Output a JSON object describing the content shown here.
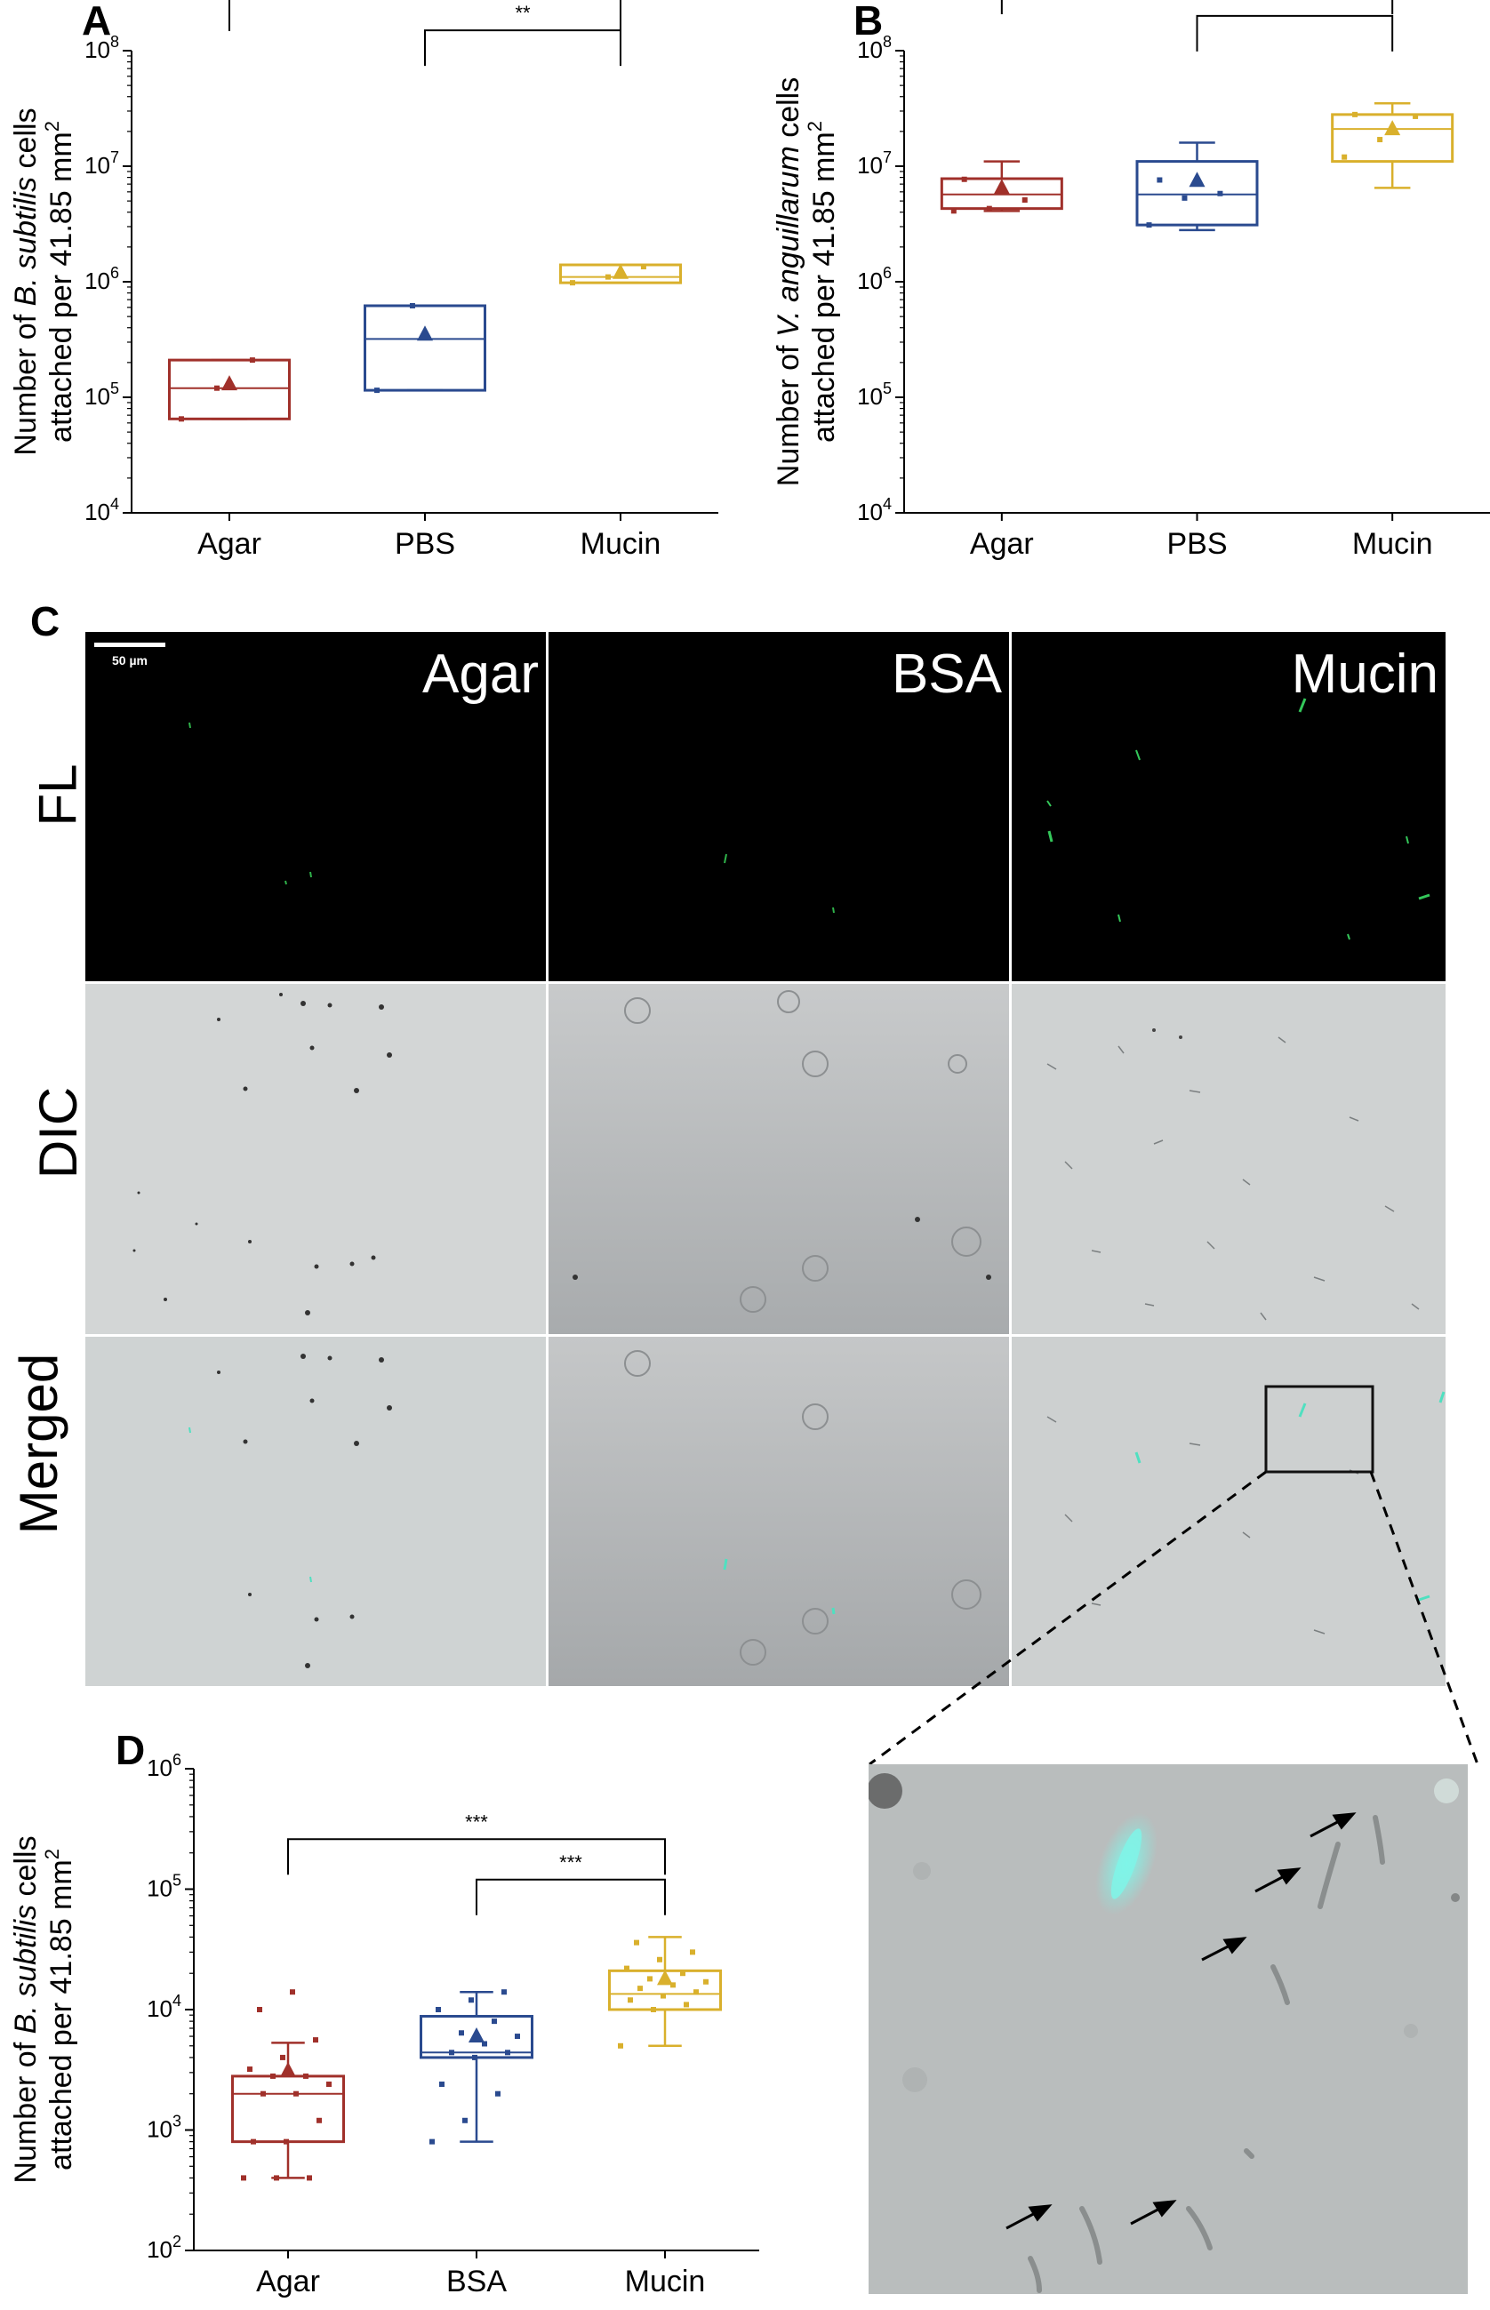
{
  "figure": {
    "panels": {
      "A": {
        "letter": "A"
      },
      "B": {
        "letter": "B"
      },
      "C": {
        "letter": "C"
      },
      "D": {
        "letter": "D"
      }
    },
    "micrograph": {
      "scale_bar": "50 µm",
      "conditions": [
        "Agar",
        "BSA",
        "Mucin"
      ],
      "rows": [
        "FL",
        "DIC",
        "Merged"
      ]
    }
  },
  "chart_data": [
    {
      "panel": "A",
      "type": "box",
      "yscale": "log",
      "ylim": [
        10000,
        100000000
      ],
      "yticks": [
        "10^4",
        "10^5",
        "10^6",
        "10^7",
        "10^8"
      ],
      "ylabel_line1_pre": "Number of ",
      "ylabel_line1_italic": "B. subtilis",
      "ylabel_line1_post": " cells",
      "ylabel_line2": "attached per 41.85 mm",
      "ylabel_sup": "2",
      "categories": [
        "Agar",
        "PBS",
        "Mucin"
      ],
      "colors": [
        "#a0302a",
        "#2a4a8f",
        "#d9b02c"
      ],
      "boxes": [
        {
          "q1": 65000,
          "median": 120000,
          "q3": 210000,
          "whislo": 65000,
          "whishi": 210000,
          "mean": 130000,
          "points": [
            65000,
            120000,
            210000
          ]
        },
        {
          "q1": 115000,
          "median": 320000,
          "q3": 620000,
          "whislo": 115000,
          "whishi": 620000,
          "mean": 350000,
          "points": [
            115000,
            620000
          ]
        },
        {
          "q1": 980000,
          "median": 1100000,
          "q3": 1400000,
          "whislo": 980000,
          "whishi": 1400000,
          "mean": 1200000,
          "points": [
            980000,
            1100000,
            1350000
          ]
        }
      ],
      "significance": [
        {
          "from": 0,
          "to": 2,
          "y": 300000000,
          "label": "**"
        },
        {
          "from": 1,
          "to": 2,
          "y": 150000000,
          "label": "**"
        }
      ]
    },
    {
      "panel": "B",
      "type": "box",
      "yscale": "log",
      "ylim": [
        10000,
        100000000
      ],
      "yticks": [
        "10^4",
        "10^5",
        "10^6",
        "10^7",
        "10^8"
      ],
      "ylabel_line1_pre": "Number of ",
      "ylabel_line1_italic": "V. anguillarum",
      "ylabel_line1_post": " cells",
      "ylabel_line2": "attached per 41.85 mm",
      "ylabel_sup": "2",
      "categories": [
        "Agar",
        "PBS",
        "Mucin"
      ],
      "colors": [
        "#a0302a",
        "#2a4a8f",
        "#d9b02c"
      ],
      "boxes": [
        {
          "q1": 4300000,
          "median": 5700000,
          "q3": 7800000,
          "whislo": 4100000,
          "whishi": 11000000,
          "mean": 6500000,
          "points": [
            4100000,
            4300000,
            5100000,
            7700000
          ]
        },
        {
          "q1": 3100000,
          "median": 5700000,
          "q3": 11000000,
          "whislo": 2800000,
          "whishi": 16000000,
          "mean": 7500000,
          "points": [
            3100000,
            5300000,
            5800000,
            7600000
          ]
        },
        {
          "q1": 11000000,
          "median": 21000000,
          "q3": 28000000,
          "whislo": 6500000,
          "whishi": 35000000,
          "mean": 21000000,
          "points": [
            12000000,
            17000000,
            27000000,
            28000000
          ]
        }
      ],
      "significance": [
        {
          "from": 0,
          "to": 2,
          "y": 420000000,
          "label": "***"
        },
        {
          "from": 1,
          "to": 2,
          "y": 200000000,
          "label": "***"
        }
      ]
    },
    {
      "panel": "D",
      "type": "box",
      "yscale": "log",
      "ylim": [
        100,
        1000000
      ],
      "yticks": [
        "10^2",
        "10^3",
        "10^4",
        "10^5",
        "10^6"
      ],
      "ylabel_line1_pre": "Number of ",
      "ylabel_line1_italic": "B. subtilis",
      "ylabel_line1_post": " cells",
      "ylabel_line2": "attached per 41.85 mm",
      "ylabel_sup": "2",
      "categories": [
        "Agar",
        "BSA",
        "Mucin"
      ],
      "colors": [
        "#a0302a",
        "#2a4a8f",
        "#d9b02c"
      ],
      "boxes": [
        {
          "q1": 800,
          "median": 2000,
          "q3": 2800,
          "whislo": 400,
          "whishi": 5300,
          "mean": 3100,
          "points": [
            400,
            400,
            400,
            800,
            800,
            1200,
            2000,
            2000,
            2400,
            2800,
            2800,
            3200,
            4000,
            5600,
            10000,
            14000
          ]
        },
        {
          "q1": 4000,
          "median": 4400,
          "q3": 8800,
          "whislo": 800,
          "whishi": 14000,
          "mean": 6000,
          "points": [
            800,
            1200,
            2000,
            2400,
            4000,
            4400,
            4400,
            5200,
            6000,
            6400,
            8000,
            10000,
            12000,
            14000
          ]
        },
        {
          "q1": 10000,
          "median": 13500,
          "q3": 21000,
          "whislo": 5000,
          "whishi": 40000,
          "mean": 18000,
          "points": [
            5000,
            10000,
            11000,
            12000,
            13000,
            14000,
            15000,
            16000,
            17000,
            18000,
            20000,
            22000,
            26000,
            30000,
            36000
          ]
        }
      ],
      "significance": [
        {
          "from": 0,
          "to": 2,
          "y": 260000,
          "label": "***"
        },
        {
          "from": 1,
          "to": 2,
          "y": 120000,
          "label": "***"
        }
      ]
    }
  ]
}
